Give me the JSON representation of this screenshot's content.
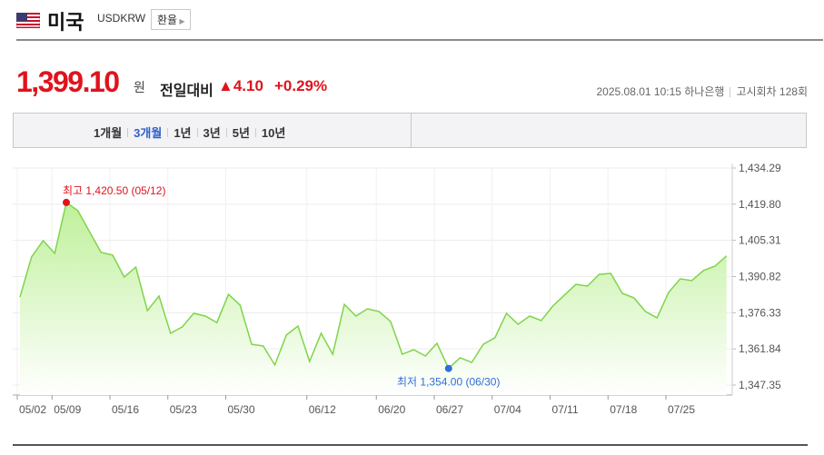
{
  "header": {
    "title": "미국",
    "code": "USDKRW",
    "button": "환율"
  },
  "quote": {
    "price": "1,399.10",
    "unit": "원",
    "change_label": "전일대비",
    "change": "▲4.10",
    "change_pct": "+0.29%",
    "datetime": "2025.08.01 10:15",
    "bank": "하나은행",
    "round": "고시회차 128회"
  },
  "tabs": {
    "items": [
      "1개월",
      "3개월",
      "1년",
      "3년",
      "5년",
      "10년"
    ],
    "selected": "3개월"
  },
  "chart_data": {
    "type": "area",
    "color": "#7fd44a",
    "categories": [
      "05/02",
      null,
      null,
      "05/09",
      null,
      null,
      null,
      null,
      "05/16",
      null,
      null,
      null,
      null,
      "05/23",
      null,
      null,
      null,
      null,
      "05/30",
      null,
      null,
      null,
      null,
      null,
      null,
      "06/12",
      null,
      null,
      null,
      null,
      null,
      "06/20",
      null,
      null,
      null,
      null,
      "06/27",
      null,
      null,
      null,
      null,
      "07/04",
      null,
      null,
      null,
      null,
      "07/11",
      null,
      null,
      null,
      null,
      "07/18",
      null,
      null,
      null,
      null,
      "07/25",
      null,
      null,
      null,
      null,
      null
    ],
    "values": [
      1382.6,
      1398.7,
      1405.2,
      1400.1,
      1420.5,
      1417.2,
      1408.8,
      1400.5,
      1399.4,
      1390.6,
      1394.6,
      1377.2,
      1383.0,
      1368.1,
      1370.6,
      1376.1,
      1375.0,
      1372.4,
      1383.7,
      1379.4,
      1363.7,
      1363.0,
      1355.4,
      1367.4,
      1371.0,
      1356.8,
      1368.1,
      1359.7,
      1379.7,
      1375.0,
      1377.9,
      1376.8,
      1372.8,
      1359.7,
      1361.5,
      1359.0,
      1364.1,
      1354.0,
      1358.3,
      1356.4,
      1363.7,
      1366.3,
      1376.1,
      1371.7,
      1375.0,
      1373.2,
      1379.0,
      1383.4,
      1387.7,
      1387.0,
      1391.7,
      1392.1,
      1384.1,
      1382.3,
      1376.8,
      1374.3,
      1384.5,
      1389.9,
      1389.2,
      1393.2,
      1395.0,
      1399.1
    ],
    "ylim": [
      1343.35,
      1434.29
    ],
    "yticks": [
      {
        "value": 1434.29,
        "label": "1,434.29"
      },
      {
        "value": 1419.8,
        "label": "1,419.80"
      },
      {
        "value": 1405.31,
        "label": "1,405.31"
      },
      {
        "value": 1390.82,
        "label": "1,390.82"
      },
      {
        "value": 1376.33,
        "label": "1,376.33"
      },
      {
        "value": 1361.84,
        "label": "1,361.84"
      },
      {
        "value": 1347.35,
        "label": "1,347.35"
      }
    ],
    "max_label": "최고 1,420.50 (05/12)",
    "min_label": "최저 1,354.00 (06/30)",
    "grid": true
  }
}
